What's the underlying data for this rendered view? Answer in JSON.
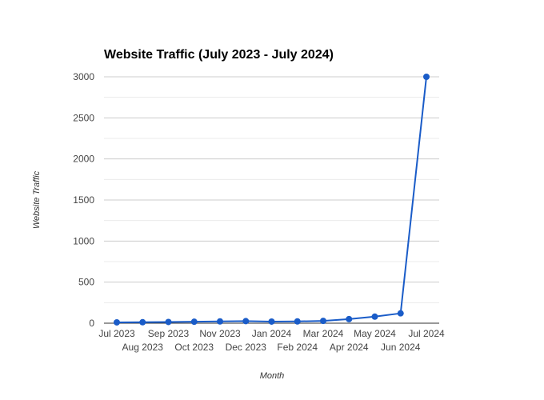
{
  "chart_data": {
    "type": "line",
    "title": "Website Traffic (July 2023 - July 2024)",
    "xlabel": "Month",
    "ylabel": "Website Traffic",
    "categories": [
      "Jul 2023",
      "Aug 2023",
      "Sep 2023",
      "Oct 2023",
      "Nov 2023",
      "Dec 2023",
      "Jan 2024",
      "Feb 2024",
      "Mar 2024",
      "Apr 2024",
      "May 2024",
      "Jun 2024",
      "Jul 2024"
    ],
    "series": [
      {
        "values": [
          10,
          12,
          15,
          18,
          22,
          25,
          20,
          22,
          28,
          50,
          80,
          120,
          3000
        ],
        "color": "#1a5cc8"
      }
    ],
    "yticks": [
      0,
      500,
      1000,
      1500,
      2000,
      2500,
      3000
    ],
    "ylim": [
      0,
      3000
    ],
    "grid": true,
    "legend": "none"
  }
}
